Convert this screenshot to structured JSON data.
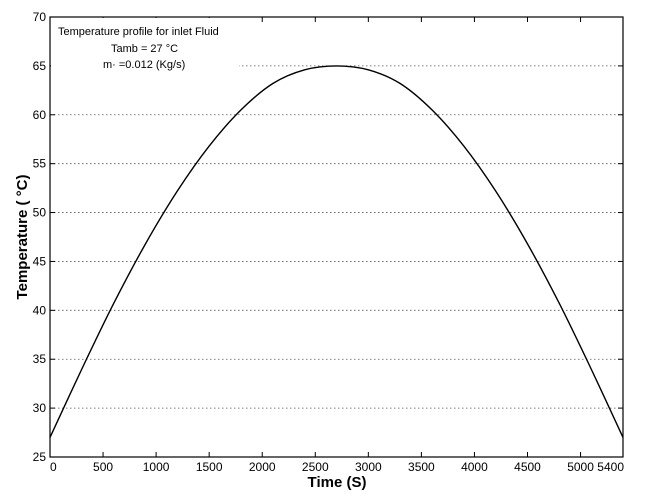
{
  "chart_data": {
    "type": "line",
    "xlabel": "Time (S)",
    "ylabel": "Temperature ( °C)",
    "xlim": [
      0,
      5400
    ],
    "ylim": [
      25,
      70
    ],
    "xticks": [
      0,
      500,
      1000,
      1500,
      2000,
      2500,
      3000,
      3500,
      4000,
      4500,
      5000,
      5400
    ],
    "yticks": [
      25,
      30,
      35,
      40,
      45,
      50,
      55,
      60,
      65,
      70
    ],
    "grid": "horizontal dotted",
    "annotations": [
      "Temperature profile for inlet Fluid",
      "Tamb = 27 °C",
      "m· =0.012 (Kg/s)"
    ],
    "series": [
      {
        "color": "#000000",
        "x": [
          0,
          300,
          600,
          900,
          1200,
          1500,
          1800,
          2100,
          2400,
          2700,
          3000,
          3300,
          3600,
          3900,
          4200,
          4500,
          4800,
          5100,
          5400
        ],
        "y": [
          27.0,
          34.0,
          40.7,
          46.8,
          52.2,
          56.8,
          60.5,
          63.2,
          64.6,
          65.0,
          64.6,
          63.2,
          60.5,
          56.8,
          52.2,
          46.8,
          40.7,
          34.0,
          27.0
        ]
      }
    ]
  }
}
